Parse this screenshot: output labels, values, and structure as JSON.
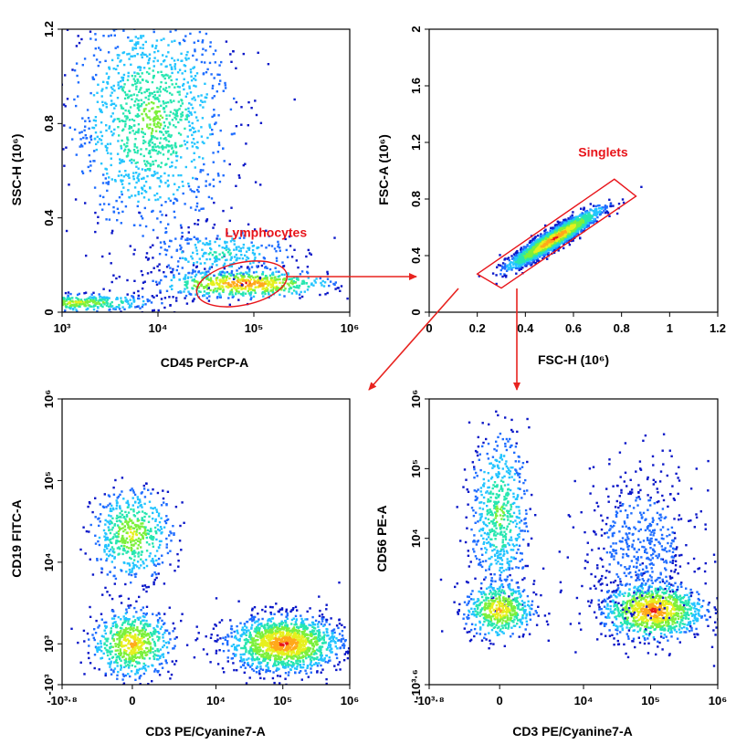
{
  "figure": {
    "arrow_color": "#e8231f",
    "gate_color": "#e8141a",
    "density_colors": [
      "#0a17c8",
      "#1f6dff",
      "#23c4ff",
      "#27e6b0",
      "#7cf03c",
      "#e6f01e",
      "#ffa91a",
      "#e8141a"
    ]
  },
  "chart_data": [
    {
      "id": "panel_a",
      "type": "scatter",
      "plot": "density",
      "xlabel": "CD45 PerCP-A",
      "ylabel": "SSC-H  (10⁶)",
      "xscale": "log",
      "xlim": [
        1000,
        1000000
      ],
      "ylim": [
        0,
        1.2
      ],
      "xticks": [
        {
          "value": 1000,
          "label": "10³"
        },
        {
          "value": 10000,
          "label": "10⁴"
        },
        {
          "value": 100000,
          "label": "10⁵"
        },
        {
          "value": 1000000,
          "label": "10⁶"
        }
      ],
      "yticks": [
        {
          "value": 0,
          "label": "0"
        },
        {
          "value": 0.4,
          "label": "0.4"
        },
        {
          "value": 0.8,
          "label": "0.8"
        },
        {
          "value": 1.2,
          "label": "1.2"
        }
      ],
      "populations": [
        {
          "x": 8500,
          "y": 0.82,
          "spread_x": 0.14,
          "spread_y": 0.2,
          "weight": 0.5,
          "peak": 4
        },
        {
          "x": 80000,
          "y": 0.12,
          "spread_x": 0.15,
          "spread_y": 0.025,
          "weight": 0.24,
          "peak": 7
        },
        {
          "x": 45000,
          "y": 0.25,
          "spread_x": 0.12,
          "spread_y": 0.045,
          "weight": 0.1,
          "peak": 3
        },
        {
          "x": 1350,
          "y": 0.04,
          "spread_x": 0.15,
          "spread_y": 0.015,
          "weight": 0.16,
          "peak": 5
        }
      ],
      "gates": [
        {
          "name": "Lymphocytes",
          "shape": "ellipse",
          "center": [
            75000,
            0.12
          ],
          "x_half_width_decades": 0.48,
          "y_half_height": 0.09,
          "rotation_deg": -12,
          "label_anchor": [
            50000,
            0.32
          ]
        }
      ]
    },
    {
      "id": "panel_b",
      "type": "scatter",
      "plot": "density",
      "xlabel": "FSC-H  (10⁶)",
      "ylabel": "FSC-A  (10⁶)",
      "xscale": "linear",
      "xlim": [
        0,
        1.2
      ],
      "ylim": [
        0,
        2
      ],
      "xticks": [
        {
          "value": 0,
          "label": "0"
        },
        {
          "value": 0.2,
          "label": "0.2"
        },
        {
          "value": 0.4,
          "label": "0.4"
        },
        {
          "value": 0.6,
          "label": "0.6"
        },
        {
          "value": 0.8,
          "label": "0.8"
        },
        {
          "value": 1,
          "label": "1"
        },
        {
          "value": 1.2,
          "label": "1.2"
        }
      ],
      "yticks": [
        {
          "value": 0,
          "label": "0"
        },
        {
          "value": 0.4,
          "label": "0.4"
        },
        {
          "value": 0.8,
          "label": "0.8"
        },
        {
          "value": 1.2,
          "label": "1.2"
        },
        {
          "value": 1.6,
          "label": "1.6"
        },
        {
          "value": 2,
          "label": "2"
        }
      ],
      "populations": [
        {
          "x": 0.52,
          "y": 0.52,
          "diagonal": true,
          "length_sd": 0.12,
          "width_sd": 0.025,
          "slope": 1.1,
          "weight": 1,
          "peak": 7
        }
      ],
      "gates": [
        {
          "name": "Singlets",
          "shape": "polygon",
          "vertices": [
            [
              0.2,
              0.27
            ],
            [
              0.3,
              0.17
            ],
            [
              0.86,
              0.82
            ],
            [
              0.77,
              0.94
            ]
          ],
          "label_anchor": [
            0.62,
            1.1
          ]
        }
      ]
    },
    {
      "id": "panel_c",
      "type": "scatter",
      "plot": "density",
      "xlabel": "CD3 PE/Cyanine7-A",
      "ylabel": "CD19 FITC-A",
      "xscale": "biexponential",
      "yscale": "biexponential",
      "xlim": [
        -6310,
        1000000
      ],
      "ylim": [
        -1000,
        1000000
      ],
      "xticks": [
        {
          "value": -6310,
          "label": "-10³·⁸"
        },
        {
          "value": 0,
          "label": "0"
        },
        {
          "value": 10000,
          "label": "10⁴"
        },
        {
          "value": 100000,
          "label": "10⁵"
        },
        {
          "value": 1000000,
          "label": "10⁶"
        }
      ],
      "yticks": [
        {
          "value": -1000,
          "label": "-10³"
        },
        {
          "value": 1000,
          "label": "10³"
        },
        {
          "value": 10000,
          "label": "10⁴"
        },
        {
          "value": 100000,
          "label": "10⁵"
        },
        {
          "value": 1000000,
          "label": "10⁶"
        }
      ],
      "populations": [
        {
          "x": 0,
          "y": 22000,
          "spread_x": 0.07,
          "spread_y": 0.08,
          "weight": 0.2,
          "peak": 5
        },
        {
          "x": 0,
          "y": 1000,
          "spread_x": 0.07,
          "spread_y": 0.06,
          "weight": 0.25,
          "peak": 6
        },
        {
          "x": 105000,
          "y": 1000,
          "spread_x": 0.1,
          "spread_y": 0.05,
          "weight": 0.55,
          "peak": 7
        }
      ]
    },
    {
      "id": "panel_d",
      "type": "scatter",
      "plot": "density",
      "xlabel": "CD3 PE/Cyanine7-A",
      "ylabel": "CD56 PE-A",
      "xscale": "biexponential",
      "yscale": "biexponential",
      "xlim": [
        -6310,
        1000000
      ],
      "ylim": [
        -3981,
        1000000
      ],
      "xticks": [
        {
          "value": -6310,
          "label": "-10³·⁸"
        },
        {
          "value": 0,
          "label": "0"
        },
        {
          "value": 10000,
          "label": "10⁴"
        },
        {
          "value": 100000,
          "label": "10⁵"
        },
        {
          "value": 1000000,
          "label": "10⁶"
        }
      ],
      "yticks": [
        {
          "value": -3981,
          "label": "-10³·⁶"
        },
        {
          "value": 10000,
          "label": "10⁴"
        },
        {
          "value": 100000,
          "label": "10⁵"
        },
        {
          "value": 1000000,
          "label": "10⁶"
        }
      ],
      "populations": [
        {
          "x": 0,
          "y": 22000,
          "spread_x": 0.05,
          "spread_y": 0.14,
          "weight": 0.22,
          "peak": 4
        },
        {
          "x": 0,
          "y": 900,
          "spread_x": 0.06,
          "spread_y": 0.05,
          "weight": 0.2,
          "peak": 6
        },
        {
          "x": 110000,
          "y": 850,
          "spread_x": 0.09,
          "spread_y": 0.05,
          "weight": 0.38,
          "peak": 7
        },
        {
          "x": 70000,
          "y": 8000,
          "spread_x": 0.1,
          "spread_y": 0.14,
          "weight": 0.2,
          "peak": 1
        }
      ]
    }
  ]
}
